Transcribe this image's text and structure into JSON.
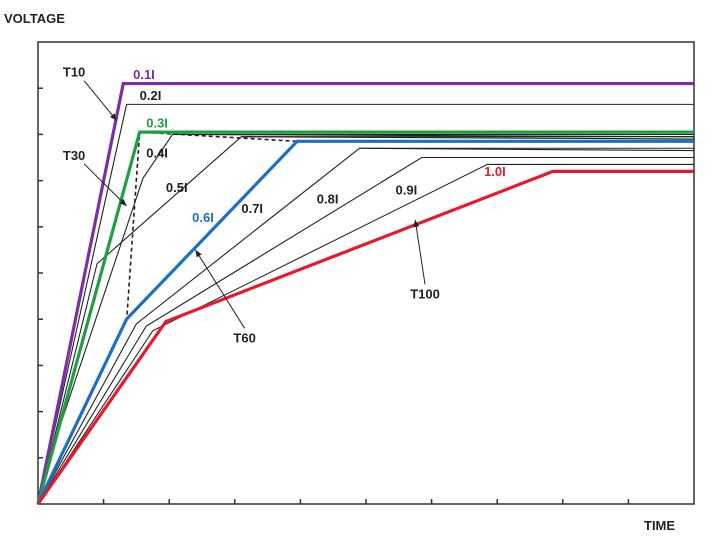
{
  "chart_data": {
    "type": "line",
    "xlabel": "TIME",
    "ylabel": "VOLTAGE",
    "xlim": [
      0,
      10
    ],
    "ylim": [
      0,
      10
    ],
    "grid": false,
    "colors": {
      "axis": "#333333",
      "default_line": "#222222",
      "purple": "#7b2fa3",
      "green": "#1fa040",
      "blue": "#1d6fc4",
      "red": "#e8192c",
      "dashed": "#222222"
    },
    "series": [
      {
        "name": "0.1I",
        "color_key": "purple",
        "bold": true,
        "points": [
          [
            0,
            0
          ],
          [
            1.3,
            9.1
          ],
          [
            10,
            9.1
          ]
        ]
      },
      {
        "name": "0.2I",
        "color_key": "default_line",
        "bold": false,
        "points": [
          [
            0,
            0
          ],
          [
            1.35,
            8.65
          ],
          [
            10,
            8.65
          ]
        ]
      },
      {
        "name": "0.3I",
        "color_key": "green",
        "bold": true,
        "points": [
          [
            0,
            0
          ],
          [
            1.55,
            8.05
          ],
          [
            10,
            8.05
          ]
        ]
      },
      {
        "name": "0.4I",
        "color_key": "default_line",
        "bold": false,
        "points": [
          [
            0,
            0
          ],
          [
            0.35,
            1.75
          ],
          [
            1.6,
            7.05
          ],
          [
            2.05,
            8.0
          ],
          [
            10,
            8.0
          ]
        ]
      },
      {
        "name": "0.5I",
        "color_key": "default_line",
        "bold": false,
        "points": [
          [
            0,
            0
          ],
          [
            0.9,
            5.2
          ],
          [
            3.1,
            7.95
          ],
          [
            10,
            7.95
          ]
        ]
      },
      {
        "name": "0.6I",
        "color_key": "blue",
        "bold": true,
        "points": [
          [
            0,
            0
          ],
          [
            1.35,
            4.0
          ],
          [
            3.95,
            7.85
          ],
          [
            10,
            7.85
          ]
        ]
      },
      {
        "name": "0.7I",
        "color_key": "default_line",
        "bold": false,
        "points": [
          [
            0,
            0
          ],
          [
            1.5,
            3.9
          ],
          [
            4.9,
            7.7
          ],
          [
            10,
            7.7
          ]
        ]
      },
      {
        "name": "0.8I",
        "color_key": "default_line",
        "bold": false,
        "points": [
          [
            0,
            0
          ],
          [
            1.65,
            3.85
          ],
          [
            5.85,
            7.5
          ],
          [
            10,
            7.5
          ]
        ]
      },
      {
        "name": "0.9I",
        "color_key": "default_line",
        "bold": false,
        "points": [
          [
            0,
            0
          ],
          [
            1.75,
            3.75
          ],
          [
            6.85,
            7.35
          ],
          [
            10,
            7.35
          ]
        ]
      },
      {
        "name": "1.0I",
        "color_key": "red",
        "bold": true,
        "points": [
          [
            0,
            0
          ],
          [
            1.95,
            3.95
          ],
          [
            7.85,
            7.2
          ],
          [
            10,
            7.2
          ]
        ]
      }
    ],
    "dashed_envelope": [
      [
        1.35,
        3.95
      ],
      [
        1.55,
        8.05
      ],
      [
        3.95,
        7.85
      ]
    ],
    "extra_series": [
      {
        "points": [
          [
            2.05,
            8.0
          ],
          [
            10,
            7.95
          ]
        ]
      },
      {
        "points": [
          [
            3.1,
            7.95
          ],
          [
            10,
            7.9
          ]
        ]
      },
      {
        "points": [
          [
            4.9,
            7.7
          ],
          [
            10,
            7.65
          ]
        ]
      }
    ],
    "labels": [
      {
        "text": "0.1I",
        "color_key": "purple",
        "x": 1.45,
        "y": 9.2
      },
      {
        "text": "0.2I",
        "color_key": "default_line",
        "x": 1.55,
        "y": 8.75
      },
      {
        "text": "0.3I",
        "color_key": "green",
        "x": 1.65,
        "y": 8.15
      },
      {
        "text": "0.4I",
        "color_key": "default_line",
        "x": 1.65,
        "y": 7.5
      },
      {
        "text": "0.5I",
        "color_key": "default_line",
        "x": 1.95,
        "y": 6.75
      },
      {
        "text": "0.6I",
        "color_key": "blue",
        "x": 2.35,
        "y": 6.1
      },
      {
        "text": "0.7I",
        "color_key": "default_line",
        "x": 3.1,
        "y": 6.3
      },
      {
        "text": "0.8I",
        "color_key": "default_line",
        "x": 4.25,
        "y": 6.5
      },
      {
        "text": "0.9I",
        "color_key": "default_line",
        "x": 5.45,
        "y": 6.7
      },
      {
        "text": "1.0I",
        "color_key": "red",
        "x": 6.8,
        "y": 7.1
      }
    ],
    "callouts": [
      {
        "text": "T10",
        "tx": 0.55,
        "ty": 9.25,
        "ax": 1.2,
        "ay": 8.3
      },
      {
        "text": "T30",
        "tx": 0.55,
        "ty": 7.45,
        "ax": 1.35,
        "ay": 6.45
      },
      {
        "text": "T60",
        "tx": 3.15,
        "ty": 3.5,
        "ax": 2.4,
        "ay": 5.5
      },
      {
        "text": "T100",
        "tx": 5.9,
        "ty": 4.45,
        "ax": 5.75,
        "ay": 6.15
      }
    ],
    "x_ticks": 10,
    "y_ticks": 10
  }
}
